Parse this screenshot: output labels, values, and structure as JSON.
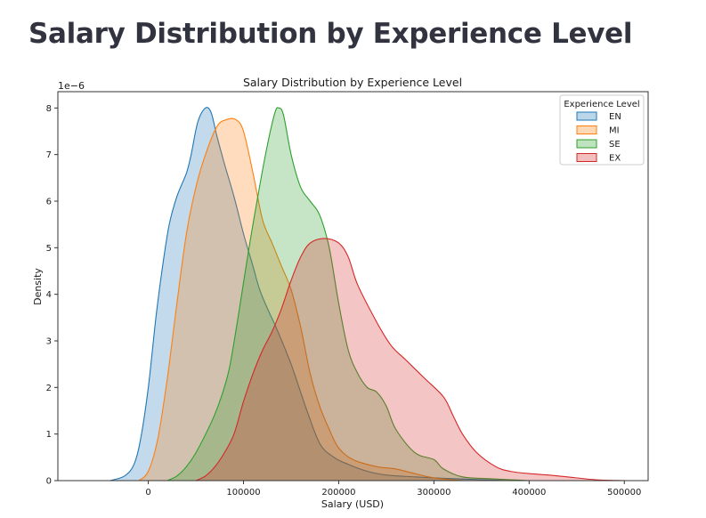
{
  "page": {
    "heading": "Salary Distribution by Experience Level"
  },
  "chart_data": {
    "type": "area",
    "title": "Salary Distribution by Experience Level",
    "xlabel": "Salary (USD)",
    "ylabel": "Density",
    "y_offset_label": "1e−6",
    "xlim": [
      -95000,
      525000
    ],
    "ylim": [
      0,
      8.35
    ],
    "x_ticks": [
      0,
      100000,
      200000,
      300000,
      400000,
      500000
    ],
    "y_ticks": [
      0,
      1,
      2,
      3,
      4,
      5,
      6,
      7,
      8
    ],
    "grid": false,
    "legend": {
      "title": "Experience Level",
      "placement": "top-right"
    },
    "series": [
      {
        "name": "EN",
        "color": "#1f77b4",
        "fill": "#1f77b4",
        "points": [
          [
            -40000,
            0
          ],
          [
            -25000,
            0.1
          ],
          [
            -15000,
            0.35
          ],
          [
            -8000,
            0.9
          ],
          [
            0,
            2.0
          ],
          [
            8000,
            3.5
          ],
          [
            15000,
            4.6
          ],
          [
            22000,
            5.5
          ],
          [
            30000,
            6.1
          ],
          [
            40000,
            6.6
          ],
          [
            45000,
            7.0
          ],
          [
            52000,
            7.7
          ],
          [
            60000,
            8.0
          ],
          [
            66000,
            7.9
          ],
          [
            72000,
            7.4
          ],
          [
            80000,
            6.8
          ],
          [
            90000,
            6.1
          ],
          [
            100000,
            5.3
          ],
          [
            110000,
            4.6
          ],
          [
            117000,
            4.1
          ],
          [
            125000,
            3.7
          ],
          [
            135000,
            3.25
          ],
          [
            150000,
            2.5
          ],
          [
            165000,
            1.6
          ],
          [
            180000,
            0.8
          ],
          [
            195000,
            0.5
          ],
          [
            210000,
            0.35
          ],
          [
            230000,
            0.2
          ],
          [
            250000,
            0.12
          ],
          [
            280000,
            0.08
          ],
          [
            310000,
            0.05
          ],
          [
            350000,
            0.02
          ],
          [
            380000,
            0
          ]
        ]
      },
      {
        "name": "MI",
        "color": "#ff7f0e",
        "fill": "#ff7f0e",
        "points": [
          [
            -10000,
            0
          ],
          [
            0,
            0.2
          ],
          [
            10000,
            0.9
          ],
          [
            20000,
            2.2
          ],
          [
            30000,
            3.8
          ],
          [
            40000,
            5.3
          ],
          [
            50000,
            6.3
          ],
          [
            60000,
            7.0
          ],
          [
            72000,
            7.6
          ],
          [
            82000,
            7.75
          ],
          [
            92000,
            7.75
          ],
          [
            100000,
            7.5
          ],
          [
            110000,
            6.6
          ],
          [
            120000,
            5.6
          ],
          [
            130000,
            5.1
          ],
          [
            140000,
            4.6
          ],
          [
            150000,
            4.1
          ],
          [
            160000,
            3.3
          ],
          [
            170000,
            2.3
          ],
          [
            180000,
            1.6
          ],
          [
            190000,
            1.1
          ],
          [
            200000,
            0.7
          ],
          [
            215000,
            0.45
          ],
          [
            240000,
            0.3
          ],
          [
            260000,
            0.25
          ],
          [
            280000,
            0.15
          ],
          [
            300000,
            0.06
          ],
          [
            330000,
            0
          ]
        ]
      },
      {
        "name": "SE",
        "color": "#2ca02c",
        "fill": "#2ca02c",
        "points": [
          [
            20000,
            0
          ],
          [
            30000,
            0.1
          ],
          [
            40000,
            0.3
          ],
          [
            50000,
            0.6
          ],
          [
            65000,
            1.2
          ],
          [
            75000,
            1.7
          ],
          [
            85000,
            2.4
          ],
          [
            95000,
            3.6
          ],
          [
            105000,
            4.9
          ],
          [
            115000,
            6.1
          ],
          [
            125000,
            7.2
          ],
          [
            133000,
            7.9
          ],
          [
            137000,
            8.0
          ],
          [
            142000,
            7.85
          ],
          [
            150000,
            7.0
          ],
          [
            160000,
            6.3
          ],
          [
            170000,
            6.0
          ],
          [
            180000,
            5.7
          ],
          [
            190000,
            5.0
          ],
          [
            200000,
            3.8
          ],
          [
            210000,
            2.8
          ],
          [
            220000,
            2.3
          ],
          [
            230000,
            2.0
          ],
          [
            240000,
            1.9
          ],
          [
            250000,
            1.6
          ],
          [
            260000,
            1.1
          ],
          [
            280000,
            0.6
          ],
          [
            300000,
            0.45
          ],
          [
            310000,
            0.25
          ],
          [
            330000,
            0.08
          ],
          [
            360000,
            0.04
          ],
          [
            380000,
            0.02
          ],
          [
            400000,
            0
          ]
        ]
      },
      {
        "name": "EX",
        "color": "#d62728",
        "fill": "#d62728",
        "points": [
          [
            50000,
            0
          ],
          [
            60000,
            0.1
          ],
          [
            70000,
            0.3
          ],
          [
            80000,
            0.6
          ],
          [
            90000,
            1.0
          ],
          [
            100000,
            1.7
          ],
          [
            110000,
            2.3
          ],
          [
            120000,
            2.8
          ],
          [
            130000,
            3.2
          ],
          [
            140000,
            3.7
          ],
          [
            150000,
            4.3
          ],
          [
            160000,
            4.8
          ],
          [
            170000,
            5.1
          ],
          [
            185000,
            5.2
          ],
          [
            200000,
            5.1
          ],
          [
            210000,
            4.8
          ],
          [
            220000,
            4.2
          ],
          [
            240000,
            3.4
          ],
          [
            255000,
            2.9
          ],
          [
            270000,
            2.6
          ],
          [
            290000,
            2.2
          ],
          [
            310000,
            1.8
          ],
          [
            320000,
            1.4
          ],
          [
            330000,
            1.0
          ],
          [
            345000,
            0.6
          ],
          [
            365000,
            0.3
          ],
          [
            380000,
            0.2
          ],
          [
            400000,
            0.15
          ],
          [
            420000,
            0.12
          ],
          [
            440000,
            0.08
          ],
          [
            470000,
            0.02
          ],
          [
            500000,
            0
          ]
        ]
      }
    ]
  }
}
